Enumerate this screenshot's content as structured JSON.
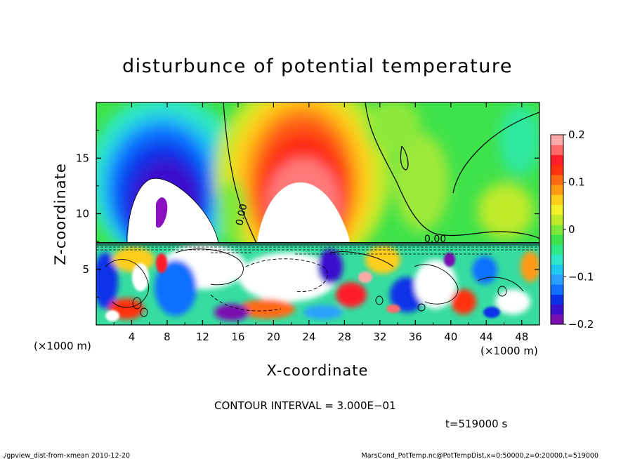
{
  "chart_data": {
    "type": "heatmap",
    "title": "disturbunce of potential temperature",
    "xlabel": "X-coordinate",
    "ylabel": "Z-coordinate",
    "x_unit_left": "(×1000 m)",
    "x_unit_right": "(×1000 m)",
    "xlim": [
      0,
      50
    ],
    "ylim": [
      0,
      20
    ],
    "x_ticks": [
      "4",
      "8",
      "12",
      "16",
      "20",
      "24",
      "28",
      "32",
      "36",
      "40",
      "44",
      "48"
    ],
    "x_tick_values": [
      4,
      8,
      12,
      16,
      20,
      24,
      28,
      32,
      36,
      40,
      44,
      48
    ],
    "y_ticks": [
      "5",
      "10",
      "15"
    ],
    "y_tick_values": [
      5,
      10,
      15
    ],
    "colorbar": {
      "range": [
        -0.2,
        0.2
      ],
      "tick_labels": [
        "0.2",
        "0.1",
        "0",
        "−0.1",
        "−0.2"
      ],
      "tick_values": [
        0.2,
        0.1,
        0,
        -0.1,
        -0.2
      ],
      "colors": [
        "#7a0fb0",
        "#3a10cc",
        "#0a30e8",
        "#1070ff",
        "#2aa0ff",
        "#20c8f0",
        "#30e6c8",
        "#2ee88a",
        "#3ee24a",
        "#7ee83a",
        "#c0ea2a",
        "#f2f22a",
        "#ffce1a",
        "#ff9a12",
        "#ff6a12",
        "#ff3210",
        "#ff1e2a",
        "#ff6a6a",
        "#ffaaaa"
      ]
    },
    "contour_labels": [
      "0.00",
      "0.00"
    ],
    "features": [
      {
        "kind": "cold_anomaly",
        "x": 8,
        "z": 14,
        "value": -0.2
      },
      {
        "kind": "warm_anomaly",
        "x": 23,
        "z": 13,
        "value": 0.2
      },
      {
        "kind": "neutral_region",
        "x": 46,
        "z": 12,
        "value": 0.0
      }
    ],
    "contour_interval_text": "CONTOUR INTERVAL = 3.000E−01",
    "time_text": "t=519000 s",
    "footer_left": "./gpview_dist-from-xmean  2010-12-20",
    "footer_right": "MarsCond_PotTemp.nc@PotTempDist,x=0:50000,z=0:20000,t=519000"
  }
}
